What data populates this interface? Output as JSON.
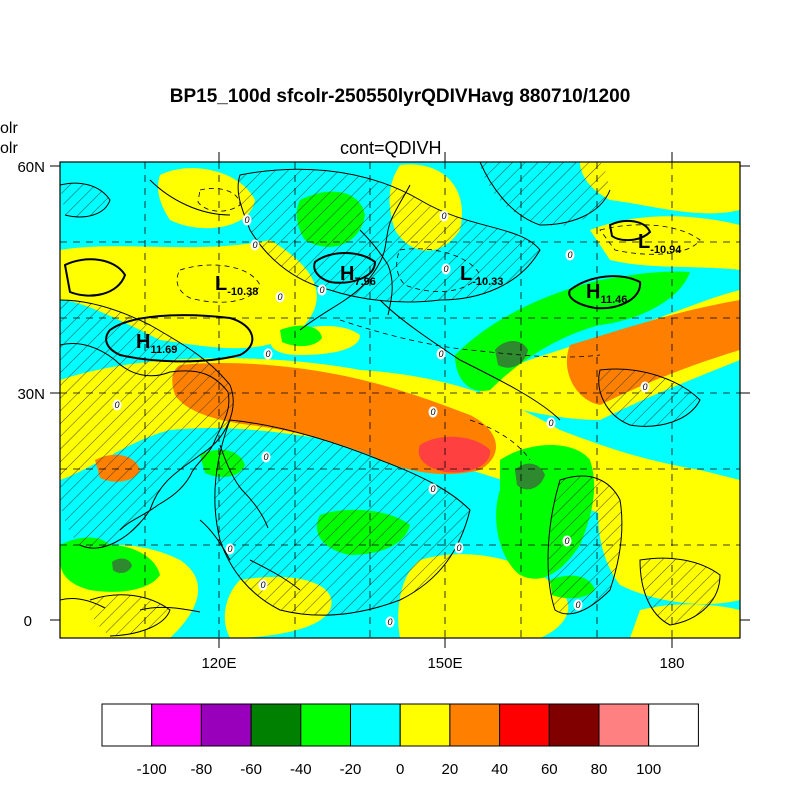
{
  "title": "BP15_100d sfcolr-250550lyrQDIVHavg  880710/1200",
  "subtitle": "cont=QDIVH",
  "left_fragments": [
    "olr",
    "olr"
  ],
  "lat_labels": [
    "60N",
    "30N",
    "0"
  ],
  "lon_labels": [
    "120E",
    "150E",
    "180"
  ],
  "colorbar": {
    "labels": [
      "-100",
      "-80",
      "-60",
      "-40",
      "-20",
      "0",
      "20",
      "40",
      "60",
      "80",
      "100"
    ],
    "colors": [
      "#ffffff",
      "#ff00ff",
      "#9900bb",
      "#008000",
      "#00ff00",
      "#00ffff",
      "#ffff00",
      "#ff8000",
      "#ff0000",
      "#800000",
      "#ff8080",
      "#ffffff"
    ]
  },
  "centers": [
    {
      "letter": "L",
      "value": "-10.38"
    },
    {
      "letter": "H",
      "value": "7.96"
    },
    {
      "letter": "L",
      "value": "-10.33"
    },
    {
      "letter": "L",
      "value": "-10.94"
    },
    {
      "letter": "H",
      "value": "11.46"
    },
    {
      "letter": "H",
      "value": "11.69"
    }
  ],
  "contour_zero_label": "0"
}
